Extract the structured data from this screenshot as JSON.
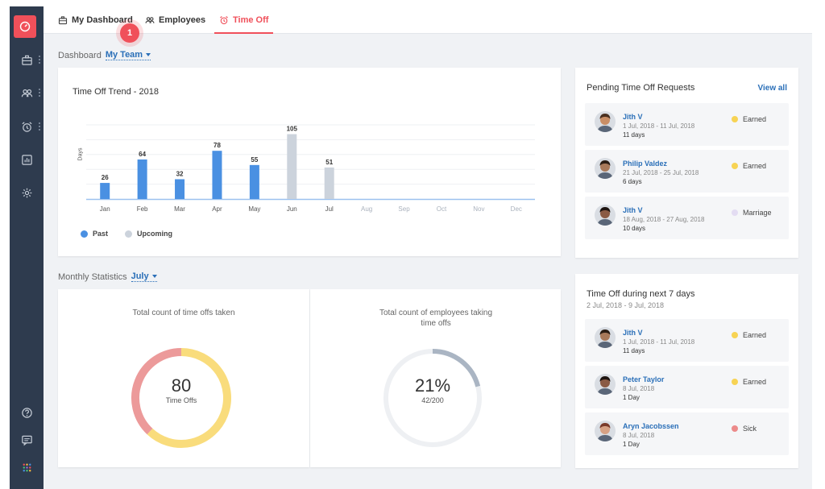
{
  "nav": {
    "tabs": [
      {
        "label": "My Dashboard",
        "icon": "briefcase-icon"
      },
      {
        "label": "Employees",
        "icon": "people-icon"
      },
      {
        "label": "Time Off",
        "icon": "alarm-icon",
        "active": true
      }
    ],
    "step_badge": "1"
  },
  "sidebar": {
    "items": [
      "dashboard-icon",
      "briefcase-icon",
      "people-icon",
      "alarm-icon",
      "report-icon",
      "gear-icon",
      "help-icon",
      "chat-icon",
      "apps-icon"
    ]
  },
  "dashboard": {
    "label": "Dashboard",
    "scope": "My Team"
  },
  "trend": {
    "title": "Time Off Trend - 2018",
    "legend": {
      "past": "Past",
      "upcoming": "Upcoming"
    },
    "colors": {
      "past": "#4a90e2",
      "upcoming": "#ccd3dc"
    }
  },
  "chart_data": {
    "type": "bar",
    "title": "Time Off Trend - 2018",
    "ylabel": "Days",
    "xlabel": "",
    "categories": [
      "Jan",
      "Feb",
      "Mar",
      "Apr",
      "May",
      "Jun",
      "Jul",
      "Aug",
      "Sep",
      "Oct",
      "Nov",
      "Dec"
    ],
    "series": [
      {
        "name": "Past",
        "values": [
          26,
          64,
          32,
          78,
          55,
          null,
          null,
          null,
          null,
          null,
          null,
          null
        ]
      },
      {
        "name": "Upcoming",
        "values": [
          null,
          null,
          null,
          null,
          null,
          105,
          51,
          null,
          null,
          null,
          null,
          null
        ]
      }
    ],
    "ylim": [
      0,
      120
    ],
    "legend": "bottom-left"
  },
  "pending": {
    "title": "Pending Time Off Requests",
    "view_all": "View all",
    "items": [
      {
        "name": "Jith V",
        "dates": "1 Jul, 2018 - 11 Jul, 2018",
        "days": "11 days",
        "type": "Earned",
        "color": "#f7d354"
      },
      {
        "name": "Philip Valdez",
        "dates": "21 Jul, 2018 - 25 Jul, 2018",
        "days": "6 days",
        "type": "Earned",
        "color": "#f7d354"
      },
      {
        "name": "Jith V",
        "dates": "18 Aug, 2018 - 27 Aug, 2018",
        "days": "10 days",
        "type": "Marriage",
        "color": "#e3dcf2"
      }
    ]
  },
  "monthly": {
    "label": "Monthly Statistics",
    "month": "July",
    "count": {
      "title": "Total count of time offs taken",
      "value": "80",
      "unit": "Time Offs",
      "segments": [
        0.62,
        0.38
      ],
      "colors": [
        "#f9dc7c",
        "#ec9a9a"
      ]
    },
    "employees": {
      "title": "Total count of employees taking time offs",
      "value": "21%",
      "ratio": "42/200",
      "fraction": 0.21,
      "colors": [
        "#aab5c3",
        "#eef0f3"
      ]
    }
  },
  "next7": {
    "title": "Time Off during next 7 days",
    "range": "2 Jul, 2018 - 9 Jul, 2018",
    "items": [
      {
        "name": "Jith V",
        "dates": "1 Jul, 2018 - 11 Jul, 2018",
        "days": "11 days",
        "type": "Earned",
        "color": "#f7d354"
      },
      {
        "name": "Peter Taylor",
        "dates": "8 Jul, 2018",
        "days": "1 Day",
        "type": "Earned",
        "color": "#f7d354"
      },
      {
        "name": "Aryn Jacobssen",
        "dates": "8 Jul, 2018",
        "days": "1 Day",
        "type": "Sick",
        "color": "#ec8a8a"
      }
    ]
  }
}
